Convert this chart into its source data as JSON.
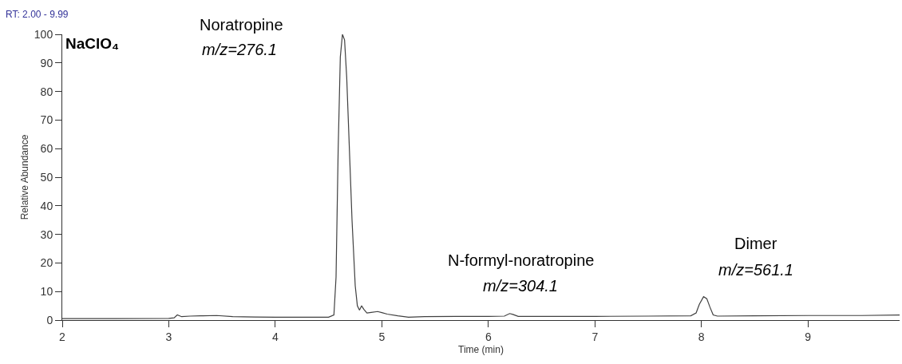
{
  "chart_data": {
    "type": "line",
    "xlabel": "Time (min)",
    "ylabel": "Relative Abundance",
    "annotations": [
      "RT: 2.00 - 9.99",
      "NaClO₄",
      "Noratropine",
      "m/z=276.1",
      "N-formyl-noratropine",
      "m/z=304.1",
      "Dimer",
      "m/z=561.1"
    ],
    "series": [
      {
        "color": "#404040",
        "x": [
          2.0,
          2.5,
          3.0,
          3.05,
          3.08,
          3.12,
          3.2,
          3.3,
          3.45,
          3.6,
          3.8,
          4.0,
          4.3,
          4.5,
          4.55,
          4.57,
          4.59,
          4.61,
          4.63,
          4.65,
          4.67,
          4.69,
          4.72,
          4.75,
          4.77,
          4.79,
          4.81,
          4.83,
          4.86,
          4.9,
          4.96,
          5.0,
          5.05,
          5.15,
          5.25,
          5.4,
          5.7,
          6.0,
          6.15,
          6.2,
          6.23,
          6.28,
          6.5,
          7.0,
          7.5,
          7.9,
          7.95,
          7.98,
          8.02,
          8.05,
          8.08,
          8.11,
          8.15,
          8.5,
          9.0,
          9.5,
          9.86
        ],
        "values": [
          0.5,
          0.5,
          0.6,
          0.8,
          1.8,
          1.2,
          1.4,
          1.5,
          1.6,
          1.2,
          1.1,
          1.0,
          1.0,
          1.0,
          1.8,
          15,
          60,
          92,
          100,
          98,
          85,
          65,
          35,
          12,
          5,
          3.5,
          5,
          3.8,
          2.5,
          2.7,
          3.0,
          2.6,
          2.1,
          1.5,
          1.0,
          1.2,
          1.3,
          1.3,
          1.4,
          2.3,
          2.0,
          1.3,
          1.3,
          1.3,
          1.4,
          1.5,
          2.5,
          5.5,
          8.2,
          7.5,
          4.5,
          1.8,
          1.4,
          1.5,
          1.6,
          1.6,
          1.8
        ]
      }
    ],
    "xlim": [
      2,
      9.86
    ],
    "xticks": [
      2,
      3,
      4,
      5,
      6,
      7,
      8,
      9
    ],
    "ylim": [
      0,
      100
    ],
    "yticks": [
      0,
      10,
      20,
      30,
      40,
      50,
      60,
      70,
      80,
      90,
      100
    ],
    "grid": false,
    "marker": "none",
    "line_style": "solid"
  }
}
